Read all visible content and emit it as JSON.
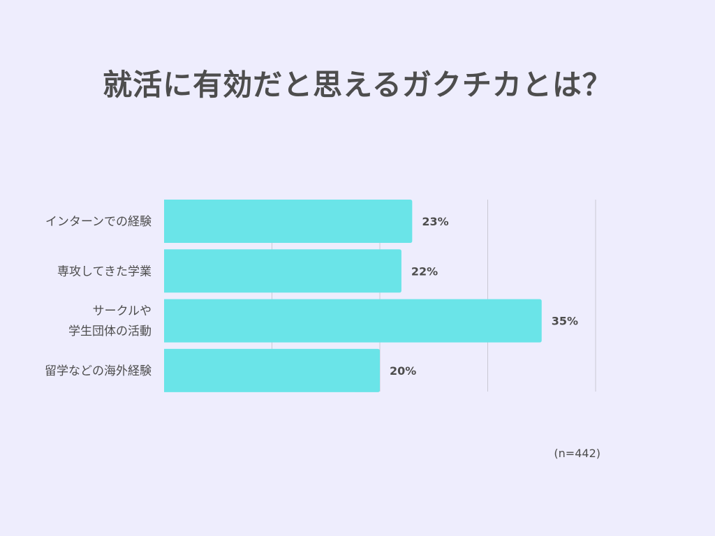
{
  "title": "就活に有効だと思えるガクチカとは？",
  "note": "(n=442)",
  "colors": {
    "background": "#eeedfd",
    "bar": "#6ae4e8",
    "text": "#4d4d4d",
    "grid": "#c9c9d4"
  },
  "chart_data": {
    "type": "bar",
    "orientation": "horizontal",
    "title": "就活に有効だと思えるガクチカとは？",
    "categories": [
      [
        "インターンでの経験"
      ],
      [
        "専攻してきた学業"
      ],
      [
        "サークルや",
        "学生団体の活動"
      ],
      [
        "留学などの海外経験"
      ]
    ],
    "values": [
      23,
      22,
      35,
      20
    ],
    "value_labels": [
      "23%",
      "22%",
      "35%",
      "20%"
    ],
    "unit": "%",
    "xlim": [
      0,
      40
    ],
    "grid": true,
    "grid_values": [
      10,
      20,
      30,
      40
    ],
    "tick_labels_visible": false,
    "legend": "none"
  }
}
